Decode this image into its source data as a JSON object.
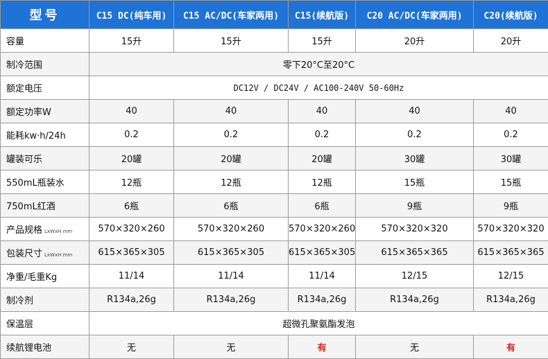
{
  "header": {
    "corner": "型号",
    "models": [
      "C15 DC(纯车用)",
      "C15 AC/DC(车家两用)",
      "C15(续航版)",
      "C20 AC/DC(车家两用)",
      "C20(续航版)"
    ]
  },
  "rows": [
    {
      "label": "容量",
      "values": [
        "15升",
        "15升",
        "15升",
        "20升",
        "20升"
      ]
    },
    {
      "label": "制冷范围",
      "merged": "零下20°C至20°C"
    },
    {
      "label": "额定电压",
      "merged": "DC12V / DC24V / AC100-240V 50-60Hz"
    },
    {
      "label": "额定功率W",
      "values": [
        "40",
        "40",
        "40",
        "40",
        "40"
      ]
    },
    {
      "label": "能耗kw·h/24h",
      "values": [
        "0.2",
        "0.2",
        "0.2",
        "0.2",
        "0.2"
      ]
    },
    {
      "label": "罐装可乐",
      "values": [
        "20罐",
        "20罐",
        "20罐",
        "30罐",
        "30罐"
      ]
    },
    {
      "label": "550mL瓶装水",
      "values": [
        "12瓶",
        "12瓶",
        "12瓶",
        "15瓶",
        "15瓶"
      ]
    },
    {
      "label": "750mL红酒",
      "values": [
        "6瓶",
        "6瓶",
        "6瓶",
        "9瓶",
        "9瓶"
      ]
    },
    {
      "label": "产品规格",
      "unit": "LxWxH mm",
      "values": [
        "570×320×260",
        "570×320×260",
        "570×320×260",
        "570×320×320",
        "570×320×320"
      ]
    },
    {
      "label": "包装尺寸",
      "unit": "LxWxH mm",
      "values": [
        "615×365×305",
        "615×365×305",
        "615×365×305",
        "615×365×365",
        "615×365×365"
      ]
    },
    {
      "label": "净重/毛重Kg",
      "values": [
        "11/14",
        "11/14",
        "11/14",
        "12/15",
        "12/15"
      ]
    },
    {
      "label": "制冷剂",
      "values": [
        "R134a,26g",
        "R134a,26g",
        "R134a,26g",
        "R134a,26g",
        "R134a,26g"
      ]
    },
    {
      "label": "保温层",
      "merged": "超微孔聚氨酯发泡"
    },
    {
      "label": "续航锂电池",
      "values": [
        "无",
        "无",
        "有",
        "无",
        "有"
      ],
      "highlight": [
        2,
        4
      ]
    }
  ],
  "colors": {
    "header_bg": "#1f72d6",
    "header_text": "#ffffff",
    "highlight": "#e02020",
    "border": "#9a9a9a"
  }
}
